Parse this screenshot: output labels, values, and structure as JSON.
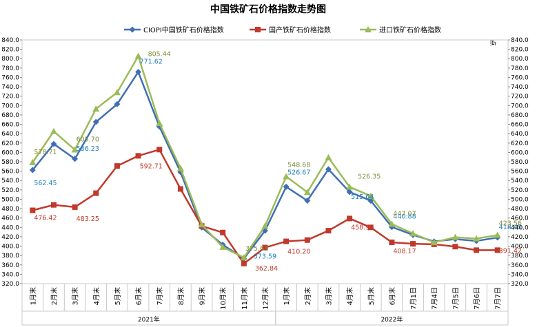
{
  "chart_data": {
    "type": "line",
    "title": "中国铁矿石价格指数走势图",
    "right_axis_unit": "点",
    "ylim": [
      320,
      840
    ],
    "ytick_step": 20,
    "categories": [
      "1月末",
      "2月末",
      "3月末",
      "4月末",
      "5月末",
      "6月末",
      "7月末",
      "8月末",
      "9月末",
      "10月末",
      "11月末",
      "12月末",
      "1月末",
      "2月末",
      "3月末",
      "4月末",
      "5月末",
      "6月末",
      "7月1日",
      "7月4日",
      "7月5日",
      "7月6日",
      "7月7日"
    ],
    "year_groups": [
      {
        "label": "2021年",
        "start": 0,
        "end": 11
      },
      {
        "label": "2022年",
        "start": 12,
        "end": 22
      }
    ],
    "legend_position": "top",
    "series": [
      {
        "name": "CIOPI中国铁矿石价格指数",
        "color": "#3f6fb5",
        "marker": "diamond",
        "label_color": "#1f7fbf",
        "values": [
          562.45,
          618,
          586.23,
          665,
          703,
          771.62,
          655,
          558,
          440,
          403,
          373.59,
          433,
          526.67,
          497,
          564,
          515.64,
          497,
          440.88,
          424,
          410,
          415,
          411,
          418.45
        ],
        "labeled": [
          0,
          2,
          5,
          10,
          12,
          15,
          17,
          22
        ]
      },
      {
        "name": "国产铁矿石价格指数",
        "color": "#c0392b",
        "marker": "square",
        "label_color": "#c0392b",
        "values": [
          476.42,
          488,
          483.25,
          513,
          571,
          592.71,
          606,
          522,
          443,
          429,
          362.84,
          397,
          410.2,
          413,
          433,
          458.95,
          440,
          408.17,
          405,
          404,
          399,
          391.42,
          391.42
        ],
        "labeled": [
          0,
          2,
          5,
          10,
          12,
          15,
          17,
          22
        ]
      },
      {
        "name": "进口铁矿石价格指数",
        "color": "#9bbb59",
        "marker": "triangle",
        "label_color": "#7f8f3f",
        "values": [
          578.71,
          645,
          605.7,
          693,
          728,
          805.44,
          662,
          566,
          446,
          398,
          375.63,
          443,
          548.68,
          515,
          589,
          526.35,
          507,
          447.07,
          427,
          408,
          419,
          416,
          423.56
        ],
        "labeled": [
          0,
          2,
          5,
          10,
          12,
          15,
          17,
          22
        ]
      }
    ]
  }
}
